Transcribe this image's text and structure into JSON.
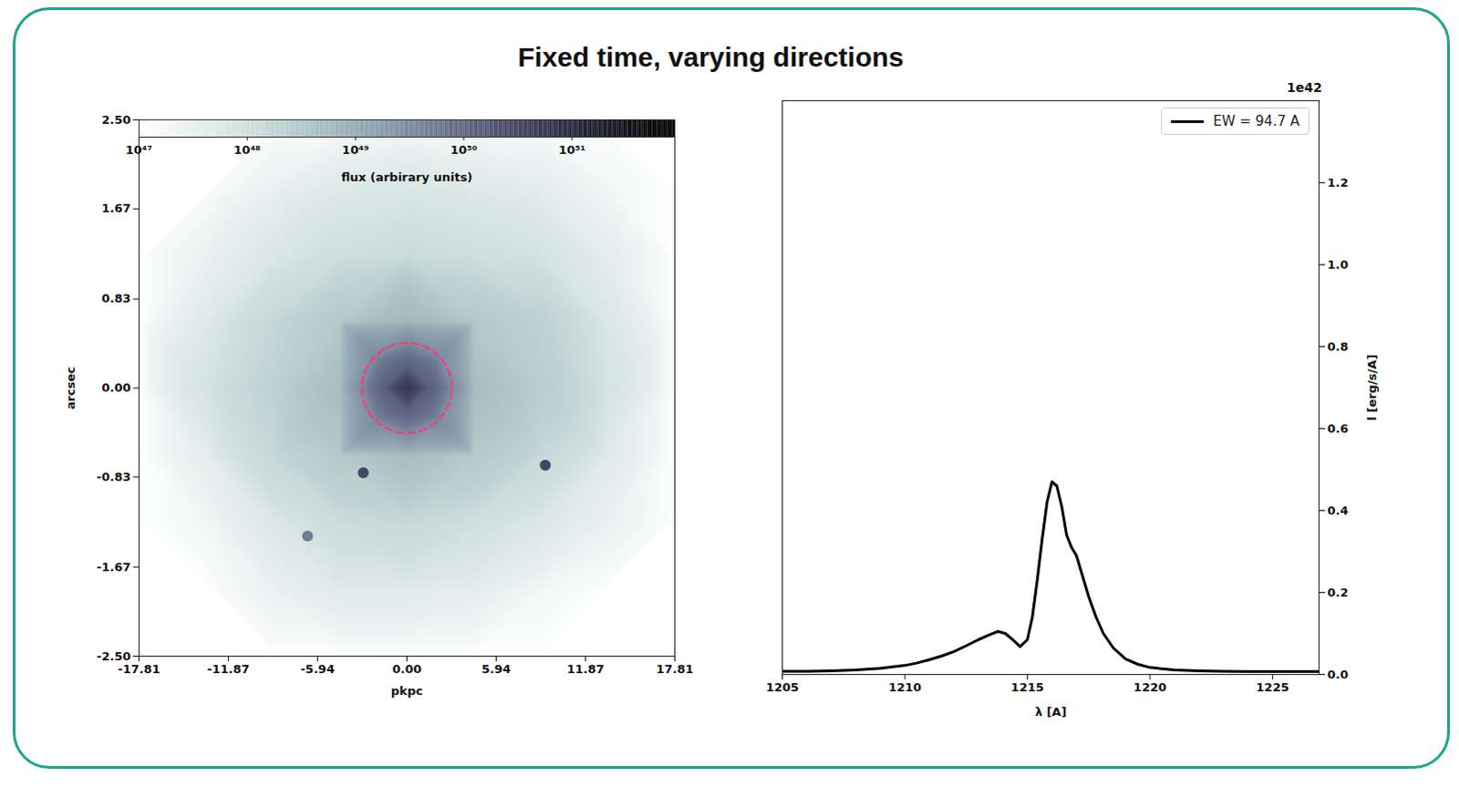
{
  "title": "Fixed time, varying directions",
  "chart_data": [
    {
      "type": "image",
      "xlabel": "pkpc",
      "ylabel": "arcsec",
      "xlim": [
        -17.81,
        17.81
      ],
      "ylim": [
        -2.5,
        2.5
      ],
      "xticks": [
        -17.81,
        -11.87,
        -5.94,
        {
          "value": 0,
          "label": "0.00"
        },
        5.94,
        11.87,
        17.81
      ],
      "yticks": [
        {
          "value": -2.5,
          "label": "-2.50"
        },
        -1.67,
        -0.83,
        {
          "value": 0,
          "label": "0.00"
        },
        0.83,
        1.67,
        {
          "value": 2.5,
          "label": "2.50"
        }
      ],
      "samples": [
        [
          -17.81,
          2.5,
          1e+47
        ],
        [
          -13.36,
          2.5,
          1e+47
        ],
        [
          -8.9,
          2.5,
          1e+47
        ],
        [
          -4.45,
          2.5,
          1e+47
        ],
        [
          0,
          2.5,
          1e+47
        ],
        [
          4.45,
          2.5,
          1e+47
        ],
        [
          8.9,
          2.5,
          1e+47
        ],
        [
          13.36,
          2.5,
          1e+47
        ],
        [
          17.81,
          2.5,
          1e+47
        ],
        [
          -17.81,
          1.875,
          1e+47
        ],
        [
          -13.36,
          1.875,
          1e+47
        ],
        [
          -8.9,
          1.875,
          3e+47
        ],
        [
          -4.45,
          1.875,
          5e+47
        ],
        [
          0,
          1.875,
          6e+47
        ],
        [
          4.45,
          1.875,
          5e+47
        ],
        [
          8.9,
          1.875,
          4e+47
        ],
        [
          13.36,
          1.875,
          2e+47
        ],
        [
          17.81,
          1.875,
          1e+47
        ],
        [
          -17.81,
          1.25,
          1e+47
        ],
        [
          -13.36,
          1.25,
          3e+47
        ],
        [
          -8.9,
          1.25,
          6e+47
        ],
        [
          -4.45,
          1.25,
          1e+48
        ],
        [
          0,
          1.25,
          1.2e+48
        ],
        [
          4.45,
          1.25,
          1e+48
        ],
        [
          8.9,
          1.25,
          8e+47
        ],
        [
          13.36,
          1.25,
          4e+47
        ],
        [
          17.81,
          1.25,
          1e+47
        ],
        [
          -17.81,
          0.625,
          1e+47
        ],
        [
          -13.36,
          0.625,
          5e+47
        ],
        [
          -8.9,
          0.625,
          1.5e+48
        ],
        [
          -4.45,
          0.625,
          3e+48
        ],
        [
          0,
          0.625,
          6e+48
        ],
        [
          4.45,
          0.625,
          3e+48
        ],
        [
          8.9,
          0.625,
          2e+48
        ],
        [
          13.36,
          0.625,
          6e+47
        ],
        [
          17.81,
          0.625,
          1e+47
        ],
        [
          -17.81,
          0,
          1e+47
        ],
        [
          -13.36,
          0,
          8e+47
        ],
        [
          -8.9,
          0,
          2e+48
        ],
        [
          -4.45,
          0,
          5e+48
        ],
        [
          0,
          0,
          5e+50
        ],
        [
          4.45,
          0,
          5e+48
        ],
        [
          8.9,
          0,
          2.5e+48
        ],
        [
          13.36,
          0,
          8e+47
        ],
        [
          17.81,
          0,
          1e+47
        ],
        [
          -17.81,
          -0.625,
          1e+47
        ],
        [
          -13.36,
          -0.625,
          4e+47
        ],
        [
          -8.9,
          -0.625,
          1.5e+48
        ],
        [
          -4.45,
          -0.625,
          3e+48
        ],
        [
          0,
          -0.625,
          5e+48
        ],
        [
          4.45,
          -0.625,
          3e+48
        ],
        [
          8.9,
          -0.625,
          1.5e+48
        ],
        [
          13.36,
          -0.625,
          5e+47
        ],
        [
          17.81,
          -0.625,
          1e+47
        ],
        [
          -17.81,
          -1.25,
          1e+47
        ],
        [
          -13.36,
          -1.25,
          2e+47
        ],
        [
          -8.9,
          -1.25,
          6e+47
        ],
        [
          -4.45,
          -1.25,
          1.2e+48
        ],
        [
          0,
          -1.25,
          1.5e+48
        ],
        [
          4.45,
          -1.25,
          1e+48
        ],
        [
          8.9,
          -1.25,
          6e+47
        ],
        [
          13.36,
          -1.25,
          3e+47
        ],
        [
          17.81,
          -1.25,
          1e+47
        ],
        [
          -17.81,
          -1.875,
          1e+47
        ],
        [
          -13.36,
          -1.875,
          1e+47
        ],
        [
          -8.9,
          -1.875,
          3e+47
        ],
        [
          -4.45,
          -1.875,
          5e+47
        ],
        [
          0,
          -1.875,
          5e+47
        ],
        [
          4.45,
          -1.875,
          4e+47
        ],
        [
          8.9,
          -1.875,
          2e+47
        ],
        [
          13.36,
          -1.875,
          1e+47
        ],
        [
          17.81,
          -1.875,
          1e+47
        ],
        [
          -17.81,
          -2.5,
          1e+47
        ],
        [
          -13.36,
          -2.5,
          1e+47
        ],
        [
          -8.9,
          -2.5,
          1e+47
        ],
        [
          -4.45,
          -2.5,
          1e+47
        ],
        [
          0,
          -2.5,
          1e+47
        ],
        [
          4.45,
          -2.5,
          1e+47
        ],
        [
          8.9,
          -2.5,
          1e+47
        ],
        [
          13.36,
          -2.5,
          1e+47
        ],
        [
          17.81,
          -2.5,
          1e+47
        ],
        [
          1.5,
          0,
          1.2e+50
        ],
        [
          -1.5,
          0,
          1.2e+50
        ],
        [
          0,
          0.2,
          1.2e+50
        ],
        [
          0,
          -0.2,
          1.2e+50
        ],
        [
          3,
          0,
          3e+49
        ],
        [
          -3,
          0,
          3e+49
        ],
        [
          0,
          0.42,
          3e+49
        ],
        [
          0,
          -0.42,
          3e+49
        ],
        [
          2.1,
          0.3,
          3e+49
        ],
        [
          -2.1,
          0.3,
          3e+49
        ],
        [
          2.1,
          -0.3,
          3e+49
        ],
        [
          -2.1,
          -0.3,
          3e+49
        ]
      ],
      "sources": [
        [
          -2.9,
          -0.79,
          3e+50
        ],
        [
          9.2,
          -0.72,
          3e+50
        ],
        [
          -6.6,
          -1.38,
          5e+49
        ]
      ],
      "aperture": {
        "x": 0,
        "y": 0,
        "radius": 0.42,
        "color": "#e8457e",
        "line_style": "dashed"
      },
      "colorbar": {
        "label": "flux (arbirary units)",
        "range": [
          1e+47,
          8.9e+51
        ],
        "ticks": [
          {
            "value": 1e+47,
            "label": "10⁴⁷"
          },
          {
            "value": 1e+48,
            "label": "10⁴⁸"
          },
          {
            "value": 1e+49,
            "label": "10⁴⁹"
          },
          {
            "value": 1e+50,
            "label": "10⁵⁰"
          },
          {
            "value": 1e+51,
            "label": "10⁵¹"
          }
        ]
      }
    },
    {
      "type": "line",
      "xlabel": "λ [A]",
      "ylabel": "l [erg/s/A]",
      "y_offset_label": "1e42",
      "xlim": [
        1205,
        1226.9
      ],
      "ylim": [
        0,
        1.4
      ],
      "xticks": [
        1205,
        1210,
        1215,
        1220,
        1225
      ],
      "yticks": [
        {
          "value": 0,
          "label": "0.0"
        },
        {
          "value": 0.2,
          "label": "0.2"
        },
        {
          "value": 0.4,
          "label": "0.4"
        },
        {
          "value": 0.6,
          "label": "0.6"
        },
        {
          "value": 0.8,
          "label": "0.8"
        },
        {
          "value": 1,
          "label": "1.0"
        },
        {
          "value": 1.2,
          "label": "1.2"
        }
      ],
      "legend": "upper right",
      "x": [
        1205,
        1206,
        1207,
        1208,
        1209,
        1210,
        1210.5,
        1211,
        1211.5,
        1212,
        1212.5,
        1213,
        1213.5,
        1213.8,
        1214.1,
        1214.4,
        1214.7,
        1215.0,
        1215.2,
        1215.4,
        1215.6,
        1215.8,
        1216.0,
        1216.2,
        1216.4,
        1216.6,
        1216.8,
        1217.0,
        1217.2,
        1217.5,
        1217.8,
        1218.1,
        1218.5,
        1219.0,
        1219.5,
        1220,
        1221,
        1222,
        1223,
        1224,
        1225,
        1226,
        1226.9
      ],
      "series": [
        {
          "name": "EW = 94.7 A",
          "color": "#000000",
          "values": [
            0.008,
            0.008,
            0.009,
            0.011,
            0.015,
            0.022,
            0.028,
            0.036,
            0.045,
            0.056,
            0.07,
            0.085,
            0.098,
            0.105,
            0.1,
            0.085,
            0.068,
            0.085,
            0.14,
            0.23,
            0.33,
            0.42,
            0.47,
            0.46,
            0.41,
            0.34,
            0.31,
            0.29,
            0.25,
            0.19,
            0.14,
            0.1,
            0.065,
            0.038,
            0.025,
            0.017,
            0.011,
            0.009,
            0.008,
            0.007,
            0.007,
            0.007,
            0.007
          ]
        }
      ]
    }
  ]
}
